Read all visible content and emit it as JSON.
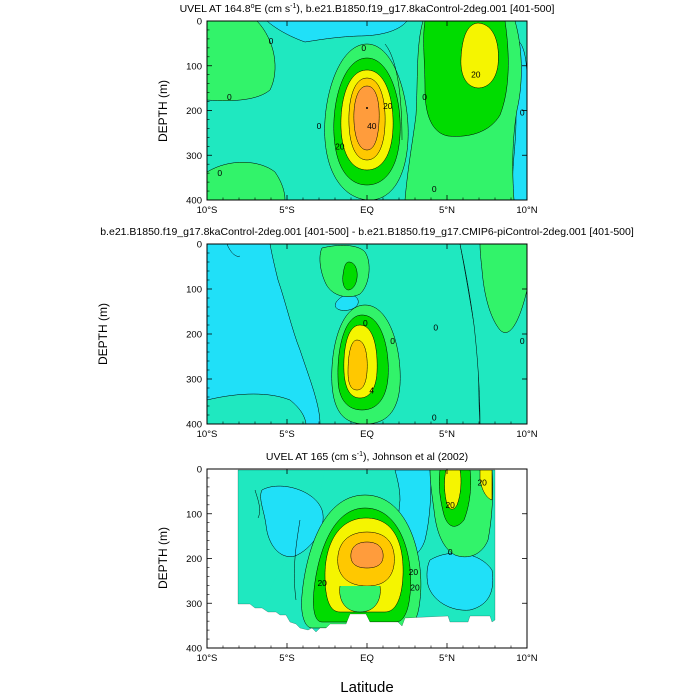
{
  "figure": {
    "xlabel": "Latitude",
    "colors": {
      "c0": "#20e0f8",
      "c1": "#1fe8c0",
      "c2": "#32f36a",
      "c3": "#00dc00",
      "c4": "#f5f500",
      "c5": "#ffc800",
      "c6": "#ff9c3c"
    }
  },
  "chart_data": [
    {
      "type": "contour",
      "title_pre": "UVEL AT 164.8",
      "title_deg": "o",
      "title_mid": "E (cm s",
      "title_exp": "-1",
      "title_post": "), b.e21.B1850.f19_g17.8kaControl-2deg.001 [401-500]",
      "ylabel": "DEPTH (m)",
      "x_ticks": [
        "10°S",
        "5°S",
        "EQ",
        "5°N",
        "10°N"
      ],
      "x_tick_values": [
        -10,
        -5,
        0,
        5,
        10
      ],
      "y_ticks": [
        "0",
        "100",
        "200",
        "300",
        "400"
      ],
      "y_tick_values": [
        0,
        100,
        200,
        300,
        400
      ],
      "xlim": [
        -10,
        10
      ],
      "ylim": [
        400,
        0
      ],
      "contour_labels": [
        {
          "text": "0",
          "lat": -6,
          "depth": 45
        },
        {
          "text": "0",
          "lat": -8.6,
          "depth": 170
        },
        {
          "text": "0",
          "lat": -9.2,
          "depth": 340
        },
        {
          "text": "0",
          "lat": -3.0,
          "depth": 235
        },
        {
          "text": "0",
          "lat": -0.2,
          "depth": 60
        },
        {
          "text": "0",
          "lat": 3.6,
          "depth": 170
        },
        {
          "text": "0",
          "lat": 4.2,
          "depth": 375
        },
        {
          "text": "0",
          "lat": 9.7,
          "depth": 205
        },
        {
          "text": "20",
          "lat": 1.3,
          "depth": 190
        },
        {
          "text": "40",
          "lat": 0.3,
          "depth": 235
        },
        {
          "text": "20",
          "lat": -1.7,
          "depth": 280
        },
        {
          "text": "20",
          "lat": 6.8,
          "depth": 120
        }
      ]
    },
    {
      "type": "contour",
      "title": "b.e21.B1850.f19_g17.8kaControl-2deg.001 [401-500] - b.e21.B1850.f19_g17.CMIP6-piControl-2deg.001 [401-500]",
      "ylabel": "DEPTH (m)",
      "x_ticks": [
        "10°S",
        "5°S",
        "EQ",
        "5°N",
        "10°N"
      ],
      "x_tick_values": [
        -10,
        -5,
        0,
        5,
        10
      ],
      "y_ticks": [
        "0",
        "100",
        "200",
        "300",
        "400"
      ],
      "y_tick_values": [
        0,
        100,
        200,
        300,
        400
      ],
      "xlim": [
        -10,
        10
      ],
      "ylim": [
        400,
        0
      ],
      "contour_labels": [
        {
          "text": "0",
          "lat": -0.1,
          "depth": 175
        },
        {
          "text": "0",
          "lat": 1.6,
          "depth": 215
        },
        {
          "text": "0",
          "lat": 4.3,
          "depth": 185
        },
        {
          "text": "0",
          "lat": 9.7,
          "depth": 215
        },
        {
          "text": "0",
          "lat": 4.2,
          "depth": 385
        },
        {
          "text": "4",
          "lat": 0.3,
          "depth": 325
        }
      ]
    },
    {
      "type": "contour",
      "title_pre": "UVEL AT 165 (cm s",
      "title_exp": "-1",
      "title_post": "), Johnson et al (2002)",
      "ylabel": "DEPTH (m)",
      "x_ticks": [
        "10°S",
        "5°S",
        "EQ",
        "5°N",
        "10°N"
      ],
      "x_tick_values": [
        -10,
        -5,
        0,
        5,
        10
      ],
      "y_ticks": [
        "0",
        "100",
        "200",
        "300",
        "400"
      ],
      "y_tick_values": [
        0,
        100,
        200,
        300,
        400
      ],
      "xlim": [
        -10,
        10
      ],
      "ylim": [
        400,
        0
      ],
      "data_lat_range": [
        -8,
        8
      ],
      "contour_labels": [
        {
          "text": "20",
          "lat": 7.2,
          "depth": 30
        },
        {
          "text": "20",
          "lat": 5.2,
          "depth": 80
        },
        {
          "text": "20",
          "lat": 2.9,
          "depth": 230
        },
        {
          "text": "20",
          "lat": -2.8,
          "depth": 255
        },
        {
          "text": "20",
          "lat": 3.0,
          "depth": 265
        },
        {
          "text": "0",
          "lat": 5.2,
          "depth": 185
        }
      ]
    }
  ]
}
